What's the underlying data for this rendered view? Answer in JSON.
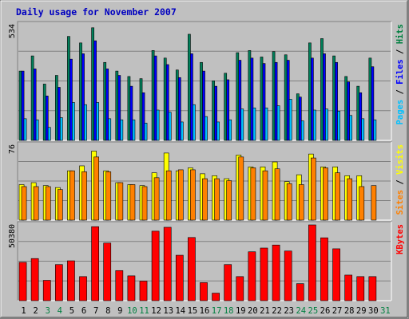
{
  "chart_data": {
    "type": "bar",
    "title": "Daily usage for November 2007",
    "categories": [
      "1",
      "2",
      "3",
      "4",
      "5",
      "6",
      "7",
      "8",
      "9",
      "10",
      "11",
      "12",
      "13",
      "14",
      "15",
      "16",
      "17",
      "18",
      "19",
      "20",
      "21",
      "22",
      "23",
      "24",
      "25",
      "26",
      "27",
      "28",
      "29",
      "30",
      "31"
    ],
    "weekend_days": [
      "3",
      "4",
      "10",
      "11",
      "17",
      "18",
      "24",
      "25",
      "31"
    ],
    "grid": true,
    "panels": [
      {
        "key": "hits_panel",
        "ymax_label": "534",
        "ymax": 534,
        "right_label": {
          "parts": [
            "Pages",
            " / ",
            "Files",
            " / ",
            "Hits"
          ],
          "colors": [
            "#00c0ff",
            "#000000",
            "#0000ff",
            "#000000",
            "#008040"
          ]
        },
        "series": [
          {
            "name": "Hits",
            "color": "#00805a",
            "values": [
              320,
              390,
              260,
              300,
              480,
              450,
              520,
              360,
              320,
              295,
              285,
              415,
              380,
              325,
              490,
              360,
              275,
              310,
              405,
              415,
              385,
              410,
              395,
              215,
              450,
              470,
              390,
              295,
              250,
              380,
              0
            ]
          },
          {
            "name": "Files",
            "color": "#0000ff",
            "values": [
              320,
              330,
              205,
              245,
              375,
              400,
              460,
              330,
              300,
              250,
              220,
              390,
              350,
              290,
              400,
              320,
              250,
              280,
              370,
              380,
              355,
              360,
              370,
              200,
              380,
              400,
              360,
              270,
              220,
              340,
              0
            ]
          },
          {
            "name": "Pages",
            "color": "#00c0ff",
            "values": [
              100,
              95,
              60,
              105,
              175,
              165,
              175,
              100,
              95,
              95,
              80,
              140,
              130,
              85,
              165,
              110,
              85,
              95,
              145,
              150,
              150,
              160,
              190,
              90,
              140,
              145,
              135,
              115,
              100,
              95,
              0
            ]
          }
        ]
      },
      {
        "key": "visits_panel",
        "ymax_label": "76",
        "ymax": 76,
        "right_label": {
          "parts": [
            "Sites",
            " / ",
            "Visits"
          ],
          "colors": [
            "#ff8000",
            "#000000",
            "#ffff00"
          ]
        },
        "series": [
          {
            "name": "Visits",
            "color": "#ffff00",
            "values": [
              36,
              38,
              35,
              33,
              50,
              55,
              70,
              50,
              38,
              36,
              35,
              48,
              68,
              50,
              53,
              47,
              45,
              42,
              66,
              54,
              54,
              59,
              39,
              46,
              67,
              54,
              54,
              45,
              45,
              0,
              0
            ]
          },
          {
            "name": "Sites",
            "color": "#ff8000",
            "values": [
              34,
              34,
              34,
              31,
              50,
              49,
              64,
              49,
              38,
              36,
              34,
              43,
              50,
              51,
              51,
              42,
              42,
              40,
              64,
              53,
              50,
              52,
              37,
              36,
              63,
              53,
              48,
              42,
              34,
              35,
              0
            ]
          }
        ]
      },
      {
        "key": "kbytes_panel",
        "ymax_label": "50380",
        "ymax": 50380,
        "right_label": {
          "parts": [
            "KBytes"
          ],
          "colors": [
            "#ff0000"
          ]
        },
        "series": [
          {
            "name": "KBytes",
            "color": "#ff0000",
            "values": [
              25500,
              28000,
              13500,
              24000,
              26500,
              16000,
              49200,
              38300,
              20000,
              16500,
              13000,
              46200,
              48800,
              30200,
              42000,
              12000,
              5000,
              24000,
              16000,
              32500,
              35000,
              37000,
              33000,
              11300,
              50380,
              41800,
              34500,
              17000,
              16000,
              16000,
              0
            ]
          }
        ]
      }
    ]
  }
}
